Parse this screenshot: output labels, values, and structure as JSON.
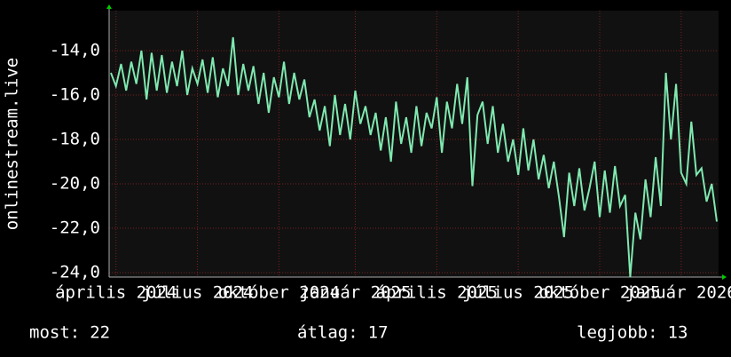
{
  "chart_data": {
    "type": "line",
    "y_label": "onlinestream.live",
    "color": "#7fe8b0",
    "grid": true,
    "xlim": [
      0,
      119
    ],
    "xticks": [
      {
        "value": 1,
        "label": "április 2024"
      },
      {
        "value": 17,
        "label": "július 2024"
      },
      {
        "value": 33,
        "label": "október 2024"
      },
      {
        "value": 48,
        "label": "január 2025"
      },
      {
        "value": 64,
        "label": "április 2025"
      },
      {
        "value": 80,
        "label": "július 2025"
      },
      {
        "value": 96,
        "label": "október 2025"
      },
      {
        "value": 112,
        "label": "január 2026"
      }
    ],
    "ylim": [
      -24.2,
      -12.2
    ],
    "yticks": [
      {
        "value": -24,
        "label": "-24,0"
      },
      {
        "value": -22,
        "label": "-22,0"
      },
      {
        "value": -20,
        "label": "-20,0"
      },
      {
        "value": -18,
        "label": "-18,0"
      },
      {
        "value": -16,
        "label": "-16,0"
      },
      {
        "value": -14,
        "label": "-14,0"
      }
    ],
    "values": [
      -15,
      -15.6,
      -14.6,
      -15.8,
      -14.5,
      -15.5,
      -14.0,
      -16.2,
      -14.1,
      -15.8,
      -14.2,
      -15.9,
      -14.5,
      -15.6,
      -14.0,
      -16.0,
      -14.8,
      -15.5,
      -14.4,
      -15.9,
      -14.3,
      -16.1,
      -14.8,
      -15.6,
      -13.4,
      -16.0,
      -14.6,
      -15.8,
      -14.7,
      -16.4,
      -15.0,
      -16.8,
      -15.2,
      -16.1,
      -14.5,
      -16.4,
      -15.0,
      -16.2,
      -15.3,
      -17.0,
      -16.2,
      -17.6,
      -16.5,
      -18.3,
      -16.0,
      -17.8,
      -16.4,
      -18.0,
      -15.8,
      -17.3,
      -16.5,
      -17.8,
      -16.8,
      -18.5,
      -17.0,
      -19.0,
      -16.3,
      -18.2,
      -17.0,
      -18.6,
      -16.5,
      -18.3,
      -16.8,
      -17.5,
      -16.1,
      -18.6,
      -16.3,
      -17.5,
      -15.5,
      -17.3,
      -15.2,
      -20.1,
      -16.9,
      -16.3,
      -18.2,
      -16.5,
      -18.6,
      -17.3,
      -19.0,
      -18.0,
      -19.6,
      -17.5,
      -19.4,
      -18.0,
      -19.8,
      -18.7,
      -20.2,
      -19.0,
      -20.6,
      -22.4,
      -19.5,
      -21.0,
      -19.3,
      -21.2,
      -20.2,
      -19.0,
      -21.5,
      -19.4,
      -21.3,
      -19.2,
      -21.0,
      -20.5,
      -24.2,
      -21.3,
      -22.5,
      -19.8,
      -21.5,
      -18.8,
      -21.0,
      -15.0,
      -18.0,
      -15.5,
      -19.5,
      -20.0,
      -17.2,
      -19.6,
      -19.3,
      -20.8,
      -20.0,
      -21.7
    ],
    "stats": [
      {
        "label": "most:",
        "value": 22
      },
      {
        "label": "átlag:",
        "value": 17
      },
      {
        "label": "legjobb:",
        "value": 13
      }
    ]
  }
}
